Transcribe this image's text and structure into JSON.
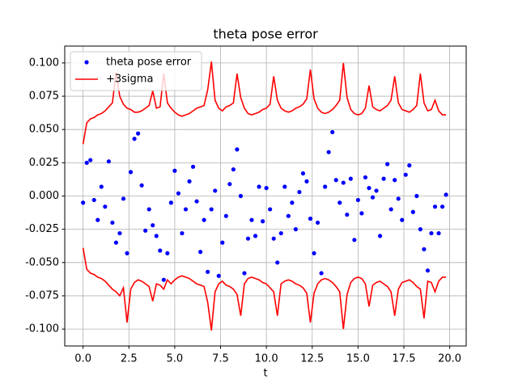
{
  "chart_data": {
    "type": "line",
    "title": "theta pose error",
    "x_label": "t",
    "x": [
      0.0,
      0.2,
      0.4,
      0.6,
      0.8,
      1.0,
      1.2,
      1.4,
      1.6,
      1.8,
      2.0,
      2.2,
      2.4,
      2.6,
      2.8,
      3.0,
      3.2,
      3.4,
      3.6,
      3.8,
      4.0,
      4.2,
      4.4,
      4.6,
      4.8,
      5.0,
      5.2,
      5.4,
      5.6,
      5.8,
      6.0,
      6.2,
      6.4,
      6.6,
      6.8,
      7.0,
      7.2,
      7.4,
      7.6,
      7.8,
      8.0,
      8.2,
      8.4,
      8.6,
      8.8,
      9.0,
      9.2,
      9.4,
      9.6,
      9.8,
      10.0,
      10.2,
      10.4,
      10.6,
      10.8,
      11.0,
      11.2,
      11.4,
      11.6,
      11.8,
      12.0,
      12.2,
      12.4,
      12.6,
      12.8,
      13.0,
      13.2,
      13.4,
      13.6,
      13.8,
      14.0,
      14.2,
      14.4,
      14.6,
      14.8,
      15.0,
      15.2,
      15.4,
      15.6,
      15.8,
      16.0,
      16.2,
      16.4,
      16.6,
      16.8,
      17.0,
      17.2,
      17.4,
      17.6,
      17.8,
      18.0,
      18.2,
      18.4,
      18.6,
      18.8,
      19.0,
      19.2,
      19.4,
      19.6,
      19.8
    ],
    "series": [
      {
        "name": "theta pose error",
        "color": "#0000ff",
        "style": "points",
        "values": [
          -0.005,
          0.025,
          0.027,
          -0.003,
          -0.018,
          0.007,
          -0.008,
          0.026,
          -0.02,
          -0.035,
          -0.028,
          -0.002,
          -0.043,
          0.018,
          0.043,
          0.047,
          0.008,
          -0.026,
          -0.01,
          -0.022,
          -0.03,
          -0.041,
          -0.063,
          -0.043,
          -0.005,
          0.019,
          0.002,
          -0.028,
          -0.01,
          0.011,
          0.022,
          -0.004,
          -0.042,
          -0.018,
          -0.057,
          -0.01,
          0.004,
          -0.06,
          -0.035,
          -0.015,
          0.009,
          0.02,
          0.035,
          0.0,
          -0.058,
          -0.032,
          -0.018,
          -0.03,
          0.007,
          -0.019,
          0.006,
          -0.01,
          -0.032,
          -0.05,
          -0.028,
          0.007,
          -0.015,
          -0.005,
          -0.025,
          0.003,
          0.017,
          0.011,
          -0.017,
          -0.043,
          -0.02,
          -0.058,
          0.007,
          0.033,
          0.048,
          0.012,
          -0.005,
          0.01,
          -0.014,
          0.013,
          -0.033,
          -0.003,
          -0.013,
          0.014,
          0.006,
          -0.001,
          0.004,
          -0.03,
          0.013,
          0.024,
          -0.01,
          0.012,
          -0.002,
          -0.018,
          0.016,
          0.023,
          -0.012,
          0.0,
          -0.025,
          -0.04,
          -0.056,
          -0.028,
          -0.008,
          -0.028,
          -0.008,
          0.001
        ]
      },
      {
        "name": "+3sigma",
        "color": "#ff0000",
        "style": "line",
        "values": [
          0.039,
          0.055,
          0.058,
          0.059,
          0.061,
          0.062,
          0.064,
          0.067,
          0.07,
          0.093,
          0.075,
          0.069,
          0.066,
          0.065,
          0.063,
          0.063,
          0.064,
          0.066,
          0.068,
          0.079,
          0.066,
          0.067,
          0.092,
          0.07,
          0.066,
          0.063,
          0.061,
          0.06,
          0.061,
          0.062,
          0.064,
          0.066,
          0.067,
          0.068,
          0.08,
          0.101,
          0.072,
          0.066,
          0.064,
          0.067,
          0.068,
          0.07,
          0.092,
          0.074,
          0.066,
          0.062,
          0.061,
          0.062,
          0.063,
          0.065,
          0.066,
          0.069,
          0.09,
          0.072,
          0.066,
          0.064,
          0.063,
          0.064,
          0.066,
          0.067,
          0.069,
          0.073,
          0.095,
          0.073,
          0.066,
          0.063,
          0.062,
          0.063,
          0.065,
          0.068,
          0.072,
          0.1,
          0.074,
          0.065,
          0.062,
          0.061,
          0.062,
          0.066,
          0.083,
          0.067,
          0.065,
          0.064,
          0.066,
          0.068,
          0.072,
          0.09,
          0.07,
          0.065,
          0.064,
          0.063,
          0.065,
          0.068,
          0.092,
          0.07,
          0.064,
          0.065,
          0.072,
          0.064,
          0.061,
          0.061
        ]
      },
      {
        "color": "#ff0000",
        "style": "line",
        "values": [
          -0.039,
          -0.055,
          -0.058,
          -0.059,
          -0.061,
          -0.062,
          -0.064,
          -0.067,
          -0.07,
          -0.072,
          -0.075,
          -0.069,
          -0.095,
          -0.07,
          -0.065,
          -0.063,
          -0.064,
          -0.066,
          -0.068,
          -0.079,
          -0.066,
          -0.067,
          -0.07,
          -0.063,
          -0.066,
          -0.063,
          -0.061,
          -0.06,
          -0.061,
          -0.062,
          -0.064,
          -0.066,
          -0.067,
          -0.068,
          -0.08,
          -0.101,
          -0.072,
          -0.066,
          -0.064,
          -0.067,
          -0.068,
          -0.07,
          -0.074,
          -0.09,
          -0.066,
          -0.062,
          -0.061,
          -0.062,
          -0.063,
          -0.065,
          -0.066,
          -0.069,
          -0.072,
          -0.09,
          -0.066,
          -0.064,
          -0.063,
          -0.064,
          -0.066,
          -0.067,
          -0.069,
          -0.073,
          -0.095,
          -0.073,
          -0.066,
          -0.063,
          -0.062,
          -0.063,
          -0.065,
          -0.068,
          -0.072,
          -0.1,
          -0.074,
          -0.065,
          -0.062,
          -0.061,
          -0.062,
          -0.066,
          -0.083,
          -0.067,
          -0.065,
          -0.064,
          -0.066,
          -0.068,
          -0.072,
          -0.09,
          -0.07,
          -0.065,
          -0.064,
          -0.063,
          -0.065,
          -0.068,
          -0.07,
          -0.092,
          -0.064,
          -0.065,
          -0.072,
          -0.064,
          -0.061,
          -0.061
        ]
      }
    ],
    "xlim": [
      -1.0,
      20.9
    ],
    "ylim": [
      -0.1127,
      0.1127
    ],
    "xticks": [
      {
        "value": 0,
        "label": "0.0"
      },
      2.5,
      {
        "value": 5,
        "label": "5.0"
      },
      7.5,
      {
        "value": 10,
        "label": "10.0"
      },
      12.5,
      {
        "value": 15,
        "label": "15.0"
      },
      17.5,
      {
        "value": 20,
        "label": "20.0"
      }
    ],
    "yticks": [
      {
        "value": -0.1,
        "label": "-0.100"
      },
      -0.075,
      {
        "value": -0.05,
        "label": "-0.050"
      },
      -0.025,
      {
        "value": 0,
        "label": "0.000"
      },
      0.025,
      {
        "value": 0.05,
        "label": "0.050"
      },
      0.075,
      {
        "value": 0.1,
        "label": "0.100"
      }
    ],
    "grid": true,
    "legend": "upper left"
  }
}
